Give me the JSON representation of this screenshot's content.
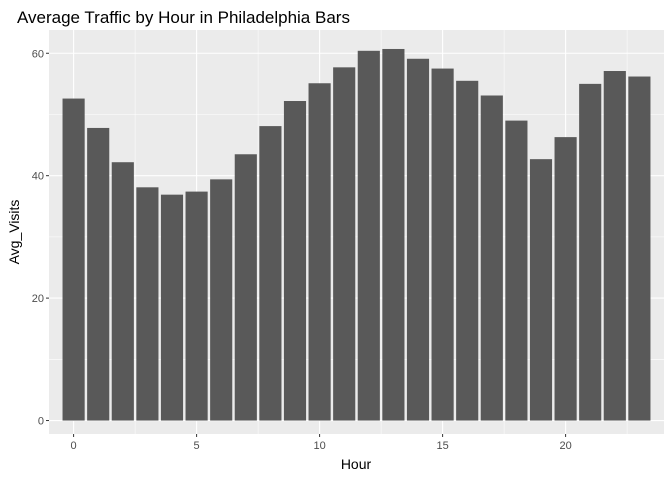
{
  "chart_data": {
    "type": "bar",
    "title": "Average Traffic by Hour in Philadelphia Bars",
    "xlabel": "Hour",
    "ylabel": "Avg_Visits",
    "x": [
      0,
      1,
      2,
      3,
      4,
      5,
      6,
      7,
      8,
      9,
      10,
      11,
      12,
      13,
      14,
      15,
      16,
      17,
      18,
      19,
      20,
      21,
      22,
      23
    ],
    "values": [
      52.6,
      47.8,
      42.2,
      38.1,
      36.9,
      37.4,
      39.4,
      43.5,
      48.1,
      52.2,
      55.1,
      57.7,
      60.4,
      60.7,
      59.1,
      57.5,
      55.5,
      53.1,
      49.0,
      42.7,
      46.3,
      55.0,
      57.1,
      56.2
    ],
    "xlim": [
      -1.0,
      24.0
    ],
    "ylim": [
      -2.2,
      63.8
    ],
    "x_ticks": [
      0,
      5,
      10,
      15,
      20
    ],
    "y_ticks": [
      0,
      20,
      40,
      60
    ],
    "x_tick_labels": [
      "0",
      "5",
      "10",
      "15",
      "20"
    ],
    "y_tick_labels": [
      "0",
      "20",
      "40",
      "60"
    ],
    "grid": true,
    "colors": {
      "bar": "#595959",
      "panel_background": "#ebebeb",
      "grid_line": "#ffffff",
      "tick_text": "#4d4d4d"
    }
  }
}
